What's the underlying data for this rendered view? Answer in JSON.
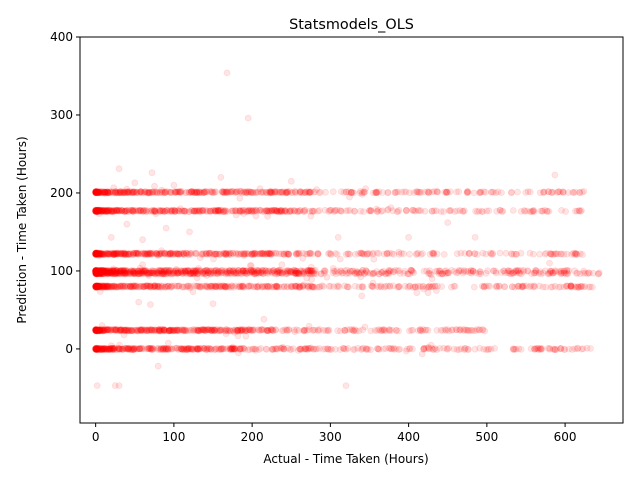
{
  "chart_data": {
    "type": "scatter",
    "title": "Statsmodels_OLS",
    "xlabel": "Actual - Time Taken (Hours)",
    "ylabel": "Prediction - Time Taken (Hours)",
    "xlim": [
      -20,
      674
    ],
    "ylim": [
      -95,
      400
    ],
    "xticks": [
      0,
      100,
      200,
      300,
      400,
      500,
      600
    ],
    "yticks": [
      0,
      100,
      200,
      300,
      400
    ],
    "point_color": "#ff0000",
    "point_alpha": 0.1,
    "grid": false,
    "bands": [
      {
        "y": 0,
        "x_min": 0,
        "x_max": 635
      },
      {
        "y": 24,
        "x_min": 0,
        "x_max": 505
      },
      {
        "y": 80,
        "x_min": 0,
        "x_max": 635
      },
      {
        "y": 97,
        "x_min": 0,
        "x_max": 645
      },
      {
        "y": 100,
        "x_min": 0,
        "x_max": 625
      },
      {
        "y": 122,
        "x_min": 0,
        "x_max": 625
      },
      {
        "y": 177,
        "x_min": 0,
        "x_max": 628
      },
      {
        "y": 201,
        "x_min": 0,
        "x_max": 625
      }
    ],
    "outliers": [
      {
        "x": 168,
        "y": 354
      },
      {
        "x": 195,
        "y": 296
      },
      {
        "x": 30,
        "y": 231
      },
      {
        "x": 72,
        "y": 226
      },
      {
        "x": 587,
        "y": 223
      },
      {
        "x": 2,
        "y": -47
      },
      {
        "x": 25,
        "y": -47
      },
      {
        "x": 30,
        "y": -47
      },
      {
        "x": 320,
        "y": -47
      },
      {
        "x": 80,
        "y": -22
      },
      {
        "x": 150,
        "y": 58
      },
      {
        "x": 70,
        "y": 57
      },
      {
        "x": 215,
        "y": 38
      },
      {
        "x": 340,
        "y": 68
      },
      {
        "x": 310,
        "y": 143
      },
      {
        "x": 400,
        "y": 143
      },
      {
        "x": 485,
        "y": 143
      },
      {
        "x": 20,
        "y": 143
      },
      {
        "x": 40,
        "y": 160
      },
      {
        "x": 90,
        "y": 155
      },
      {
        "x": 120,
        "y": 150
      },
      {
        "x": 450,
        "y": 162
      },
      {
        "x": 160,
        "y": 220
      },
      {
        "x": 50,
        "y": 213
      },
      {
        "x": 100,
        "y": 210
      },
      {
        "x": 250,
        "y": 215
      },
      {
        "x": 580,
        "y": 110
      },
      {
        "x": 430,
        "y": 90
      },
      {
        "x": 55,
        "y": 60
      },
      {
        "x": 60,
        "y": 140
      }
    ]
  }
}
